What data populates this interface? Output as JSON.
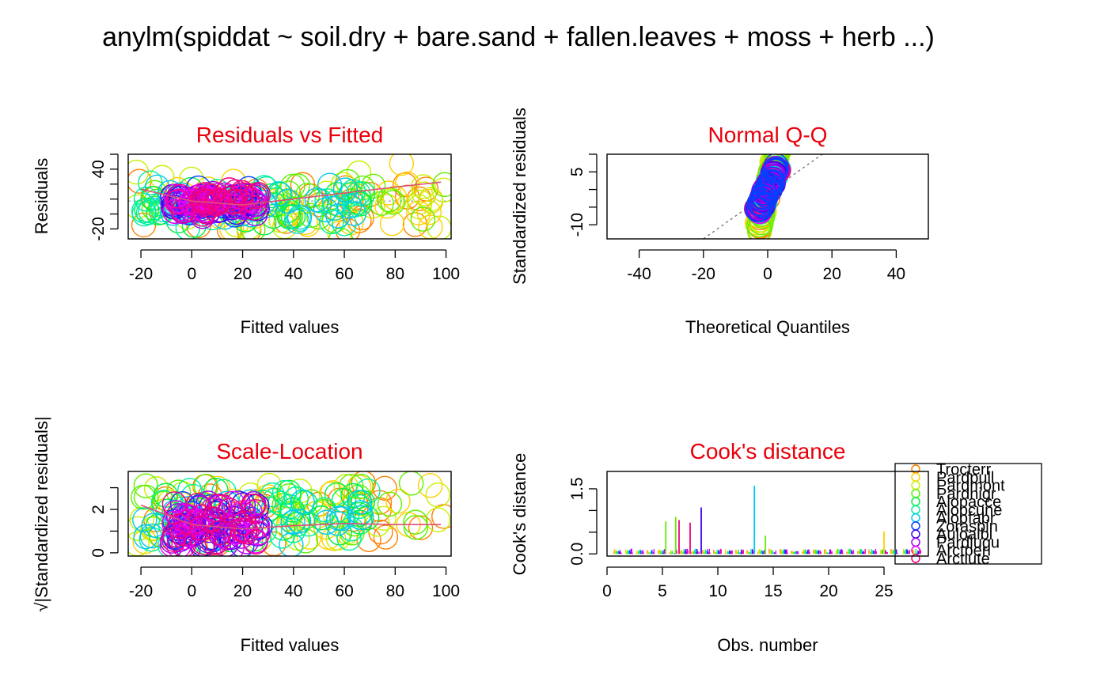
{
  "page": {
    "title": "anylm(spiddat ~ soil.dry + bare.sand + fallen.leaves + moss + herb ...)"
  },
  "colors": {
    "title": "#e8000b",
    "species": [
      "#ff8000",
      "#ffd000",
      "#c8f000",
      "#60f000",
      "#00f040",
      "#00f0a0",
      "#00c8f0",
      "#0040ff",
      "#4000f0",
      "#a000f0",
      "#f000f0",
      "#f00080"
    ]
  },
  "species": [
    "Trocterr",
    "Pardpull",
    "Pardmont",
    "Pardnigr",
    "Alopacce",
    "Alopcune",
    "Alopfabr",
    "Zoraspin",
    "Auloalbi",
    "Pardlugu",
    "Arctperi",
    "Arctlute"
  ],
  "chart_data": [
    {
      "id": "resid",
      "type": "scatter",
      "title": "Residuals vs Fitted",
      "xlabel": "Fitted values",
      "ylabel": "Residuals",
      "xlim": [
        -25,
        102
      ],
      "ylim": [
        -30,
        55
      ],
      "xticks": [
        -20,
        0,
        20,
        40,
        60,
        80,
        100
      ],
      "yticks": [
        -20,
        40
      ],
      "ygrid_ticks": [
        -20,
        -5,
        10,
        25,
        40,
        55
      ],
      "smooth": [
        [
          -20,
          20
        ],
        [
          0,
          8
        ],
        [
          20,
          4
        ],
        [
          40,
          10
        ],
        [
          60,
          16
        ],
        [
          80,
          22
        ],
        [
          98,
          27
        ]
      ]
    },
    {
      "id": "qq",
      "type": "scatter",
      "title": "Normal Q-Q",
      "xlabel": "Theoretical Quantiles",
      "ylabel": "Standardized residuals",
      "xlim": [
        -50,
        50
      ],
      "ylim": [
        -14,
        10
      ],
      "xticks": [
        -40,
        -20,
        0,
        20,
        40
      ],
      "yticks": [
        -10,
        5
      ],
      "ygrid_ticks": [
        -10,
        -5,
        0,
        5,
        10
      ],
      "refline": [
        [
          -20,
          -14
        ],
        [
          17,
          10
        ]
      ]
    },
    {
      "id": "scale",
      "type": "scatter",
      "title": "Scale-Location",
      "xlabel": "Fitted values",
      "ylabel": "√|Standardized residuals|",
      "xlim": [
        -25,
        102
      ],
      "ylim": [
        -0.15,
        3.75
      ],
      "xticks": [
        -20,
        0,
        20,
        40,
        60,
        80,
        100
      ],
      "yticks": [
        0,
        2
      ],
      "ygrid_ticks": [
        0,
        1,
        2,
        3
      ],
      "smooth": [
        [
          -20,
          2.2
        ],
        [
          0,
          1.3
        ],
        [
          20,
          1.1
        ],
        [
          40,
          1.25
        ],
        [
          60,
          1.35
        ],
        [
          80,
          1.3
        ],
        [
          98,
          1.3
        ]
      ]
    },
    {
      "id": "cook",
      "type": "bar",
      "title": "Cook's distance",
      "xlabel": "Obs. number",
      "ylabel": "Cook's distance",
      "xlim": [
        0,
        29
      ],
      "ylim": [
        -0.05,
        1.9
      ],
      "xticks": [
        0,
        5,
        10,
        15,
        20,
        25
      ],
      "yticks": [
        0.0,
        1.5
      ],
      "ygrid_ticks": [
        0,
        0.5,
        1,
        1.5
      ],
      "tall_bars": [
        {
          "obs": 5.3,
          "value": 0.75,
          "series": 3
        },
        {
          "obs": 6.2,
          "value": 0.85,
          "series": 3
        },
        {
          "obs": 6.5,
          "value": 0.78,
          "series": 11
        },
        {
          "obs": 7.5,
          "value": 0.72,
          "series": 11
        },
        {
          "obs": 8.5,
          "value": 1.07,
          "series": 8
        },
        {
          "obs": 13.3,
          "value": 1.57,
          "series": 6
        },
        {
          "obs": 14.3,
          "value": 0.42,
          "series": 3
        },
        {
          "obs": 25.0,
          "value": 0.52,
          "series": 1
        }
      ]
    }
  ]
}
